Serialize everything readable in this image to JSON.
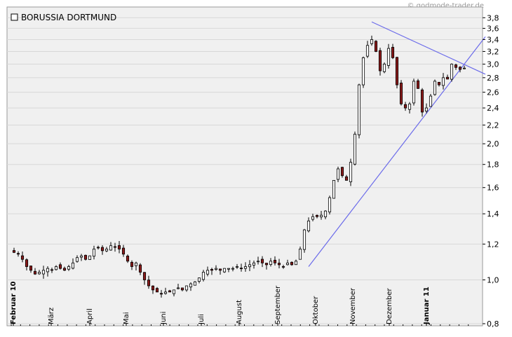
{
  "credit": "© godmode-trader.de",
  "chart_data": {
    "type": "candlestick",
    "title": "BORUSSIA DORTMUND",
    "y_scale": "log",
    "ylim": [
      0.8,
      3.9
    ],
    "yticks": [
      0.8,
      1.0,
      1.2,
      1.4,
      1.6,
      1.8,
      2.0,
      2.2,
      2.4,
      2.6,
      2.8,
      3.0,
      3.2,
      3.4,
      3.6,
      3.8
    ],
    "ytick_labels": [
      "0,8",
      "1,0",
      "1,2",
      "1,4",
      "1,6",
      "1,8",
      "2,0",
      "2,2",
      "2,4",
      "2,6",
      "2,8",
      "3,0",
      "3,2",
      "3,4",
      "3,6",
      "3,8"
    ],
    "x_month_labels": [
      {
        "label": "Februar 10",
        "bold": true
      },
      {
        "label": "März",
        "bold": false
      },
      {
        "label": "April",
        "bold": false
      },
      {
        "label": "Mai",
        "bold": false
      },
      {
        "label": "Juni",
        "bold": false
      },
      {
        "label": "Juli",
        "bold": false
      },
      {
        "label": "August",
        "bold": false
      },
      {
        "label": "September",
        "bold": false
      },
      {
        "label": "Oktober",
        "bold": false
      },
      {
        "label": "November",
        "bold": false
      },
      {
        "label": "Dezember",
        "bold": false
      },
      {
        "label": "Januar 11",
        "bold": true
      }
    ],
    "grid": true,
    "colors": {
      "background": "#f0f0f0",
      "grid": "#d8d8d8",
      "up_candle": "#ffffff",
      "down_candle": "#8b1a1a",
      "wick": "#000000",
      "trendline": "#6b6bea"
    },
    "closes": [
      1.15,
      1.14,
      1.11,
      1.07,
      1.05,
      1.03,
      1.04,
      1.05,
      1.06,
      1.05,
      1.07,
      1.06,
      1.05,
      1.07,
      1.09,
      1.12,
      1.13,
      1.11,
      1.13,
      1.17,
      1.18,
      1.16,
      1.17,
      1.19,
      1.18,
      1.17,
      1.14,
      1.1,
      1.07,
      1.09,
      1.04,
      1.0,
      0.97,
      0.95,
      0.94,
      0.93,
      0.94,
      0.94,
      0.95,
      0.96,
      0.95,
      0.97,
      0.98,
      0.99,
      1.01,
      1.04,
      1.05,
      1.05,
      1.06,
      1.05,
      1.06,
      1.06,
      1.06,
      1.07,
      1.06,
      1.07,
      1.08,
      1.09,
      1.1,
      1.09,
      1.08,
      1.1,
      1.09,
      1.08,
      1.07,
      1.09,
      1.08,
      1.1,
      1.17,
      1.29,
      1.35,
      1.38,
      1.38,
      1.39,
      1.42,
      1.52,
      1.66,
      1.76,
      1.7,
      1.66,
      1.82,
      2.1,
      2.7,
      3.1,
      3.3,
      3.4,
      3.2,
      2.9,
      3.0,
      3.25,
      3.1,
      2.7,
      2.45,
      2.4,
      2.45,
      2.75,
      2.65,
      2.35,
      2.4,
      2.55,
      2.75,
      2.7,
      2.8,
      2.78,
      3.0,
      2.95,
      2.92,
      2.94
    ],
    "trendlines": [
      {
        "from": {
          "index": 70,
          "value": 1.07
        },
        "to": {
          "index": 112,
          "value": 3.45
        }
      },
      {
        "from": {
          "index": 85,
          "value": 3.72
        },
        "to": {
          "index": 112,
          "value": 2.85
        }
      }
    ]
  }
}
